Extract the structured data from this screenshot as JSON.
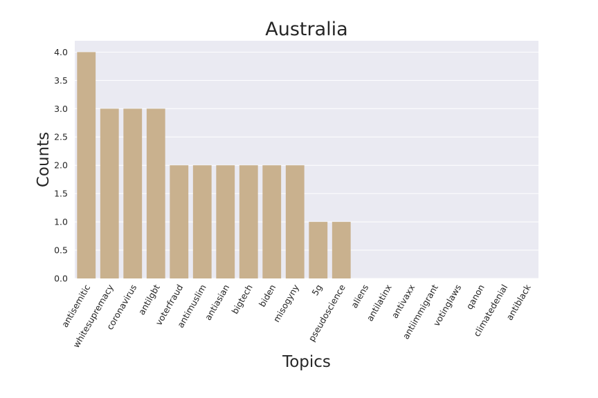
{
  "chart_data": {
    "type": "bar",
    "title": "Australia",
    "xlabel": "Topics",
    "ylabel": "Counts",
    "categories": [
      "antisemitic",
      "whitesupremacy",
      "coronavirus",
      "antilgbt",
      "voterfraud",
      "antimuslim",
      "antiasian",
      "bigtech",
      "biden",
      "misogyny",
      "5g",
      "pseudoscience",
      "aliens",
      "antilatinx",
      "antivaxx",
      "antiimmigrant",
      "votinglaws",
      "qanon",
      "climatedenial",
      "antiblack"
    ],
    "values": [
      4,
      3,
      3,
      3,
      2,
      2,
      2,
      2,
      2,
      2,
      1,
      1,
      0,
      0,
      0,
      0,
      0,
      0,
      0,
      0
    ],
    "ylim": [
      0,
      4.2
    ],
    "yticks": [
      "0.0",
      "0.5",
      "1.0",
      "1.5",
      "2.0",
      "2.5",
      "3.0",
      "3.5",
      "4.0"
    ],
    "grid": true,
    "bar_color": "#c9b18e",
    "plot_background": "#eaeaf2"
  }
}
